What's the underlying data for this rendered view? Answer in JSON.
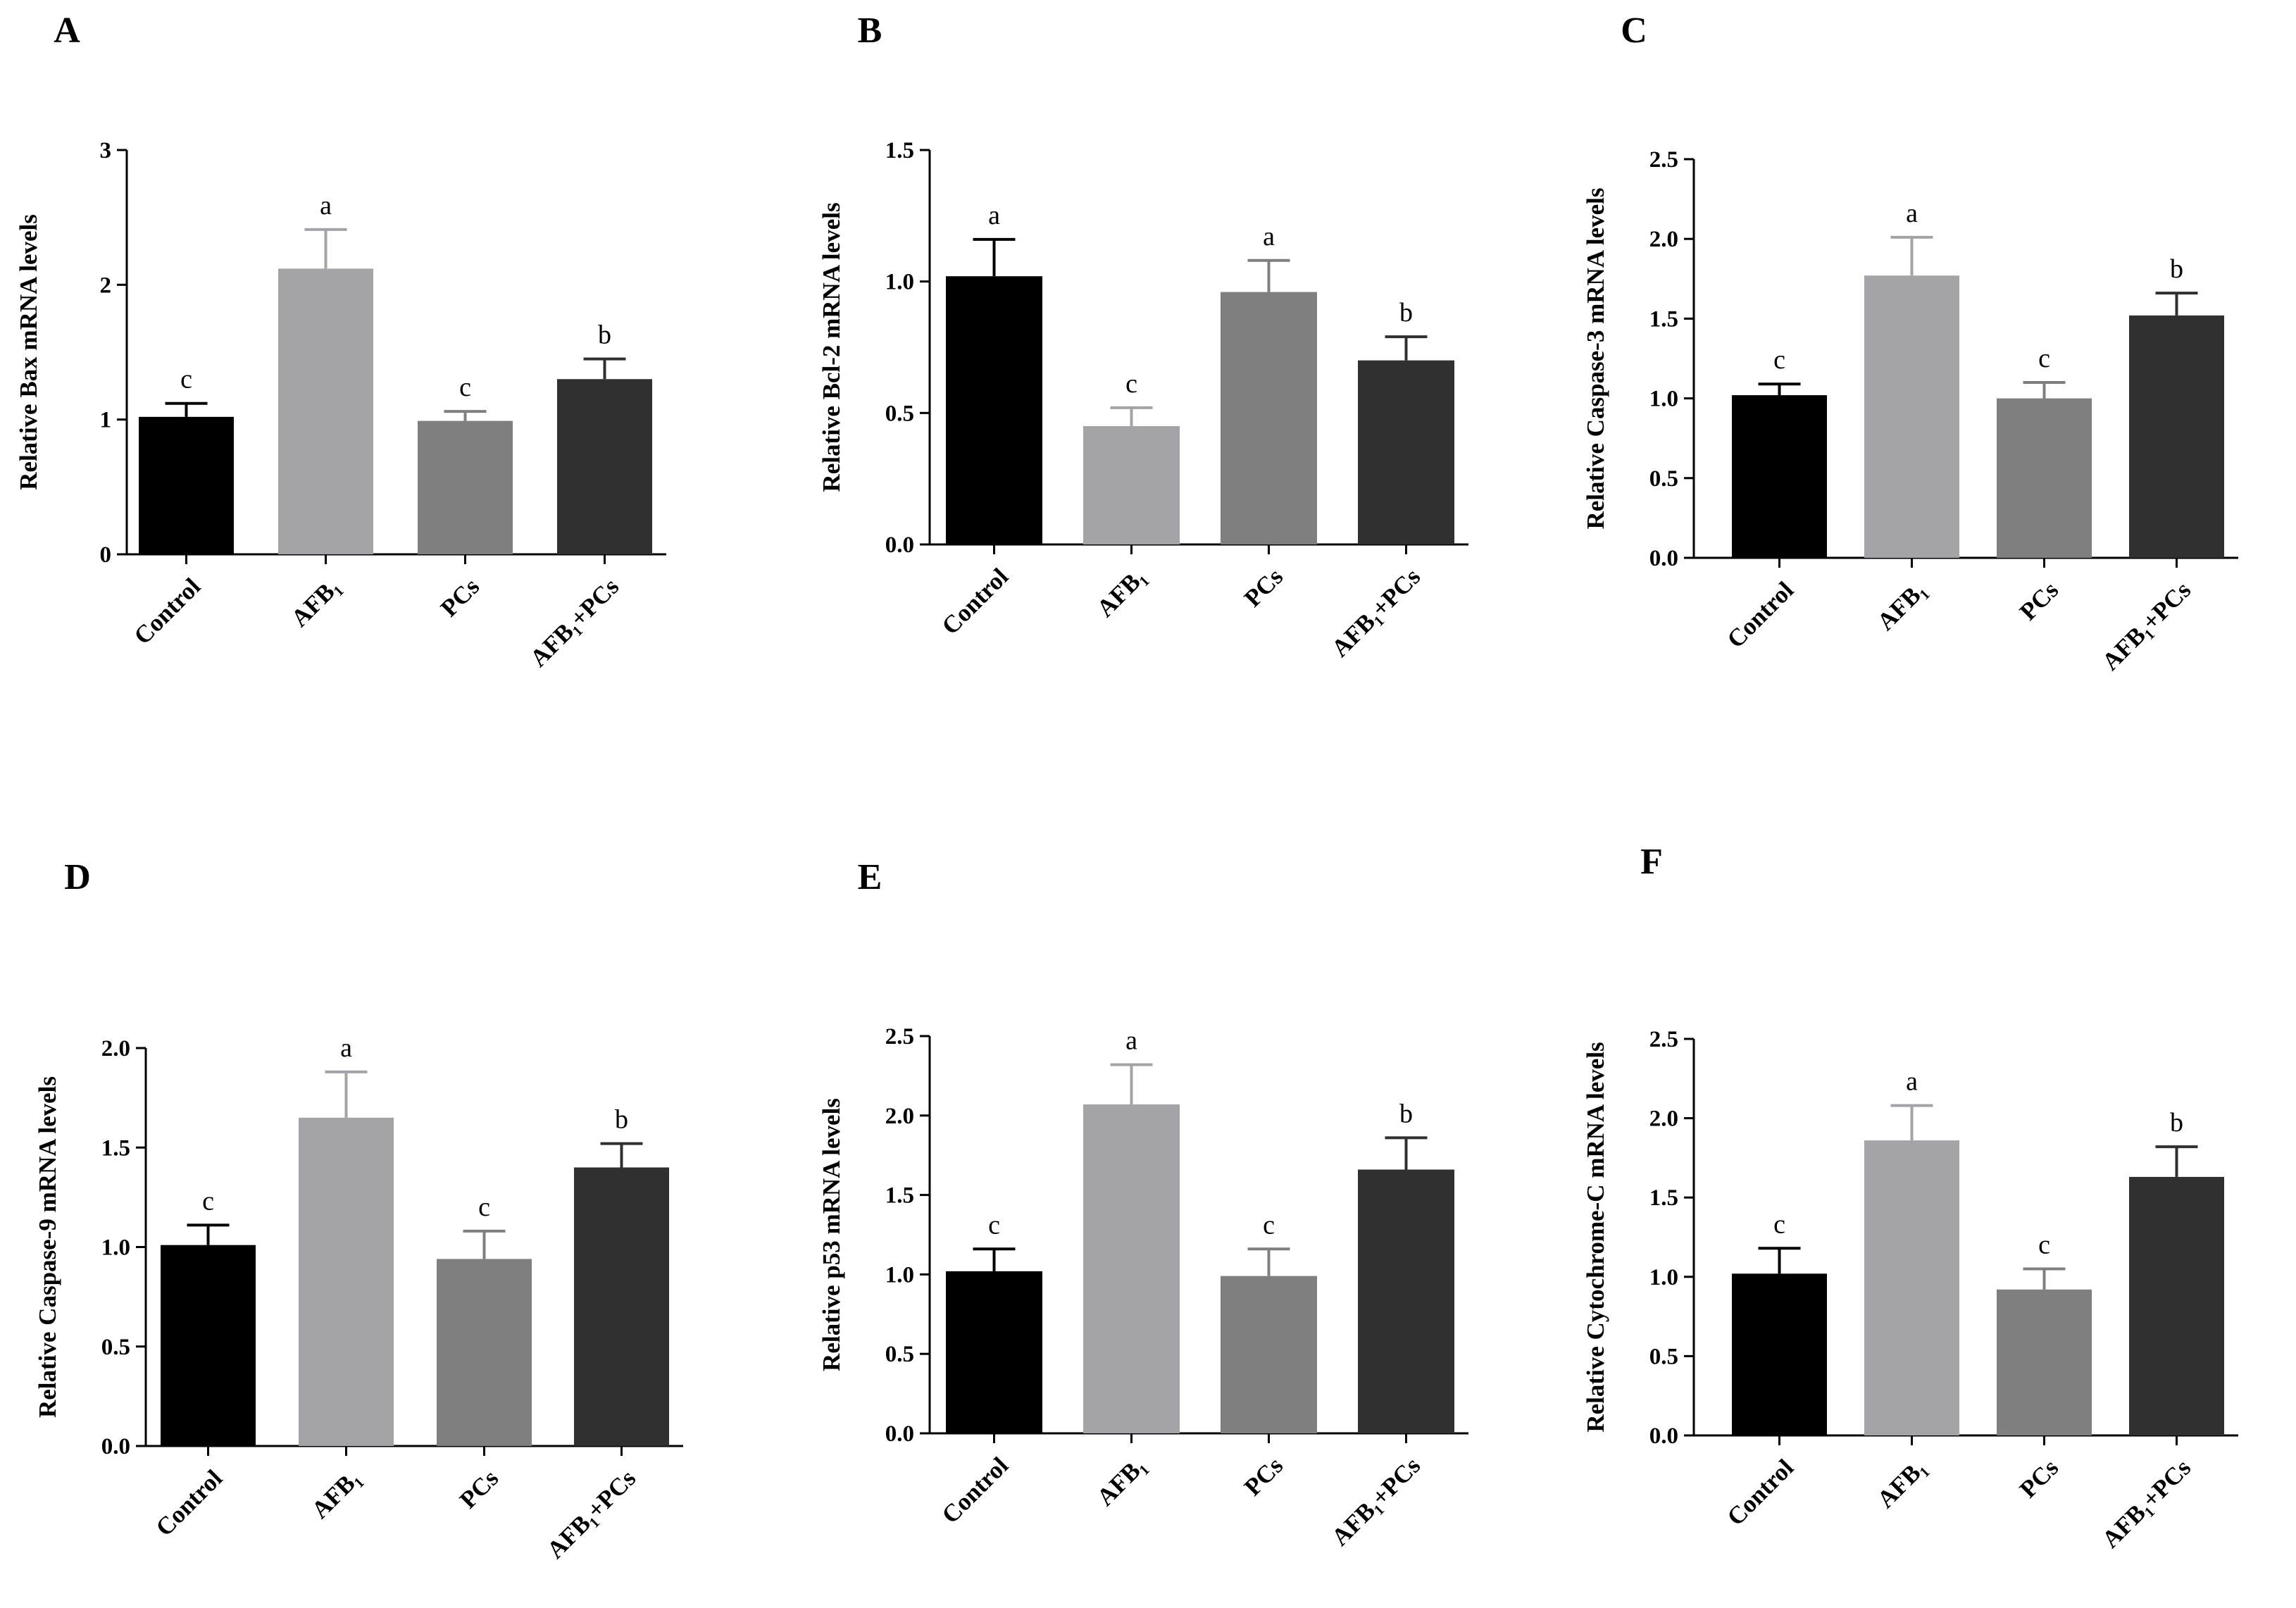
{
  "chart_data": [
    {
      "type": "bar",
      "panel": "A",
      "categories": [
        "Control",
        "AFB₁",
        "PCs",
        "AFB₁+PCs"
      ],
      "values": [
        1.02,
        2.12,
        0.99,
        1.3
      ],
      "errors": [
        0.1,
        0.29,
        0.07,
        0.15
      ],
      "labels": [
        "c",
        "a",
        "c",
        "b"
      ],
      "ylabel": "Relative Bax mRNA levels",
      "ylim": [
        0,
        3
      ],
      "yticks": [
        0,
        1,
        2,
        3
      ],
      "ytick_labels": [
        "0",
        "1",
        "2",
        "3"
      ]
    },
    {
      "type": "bar",
      "panel": "B",
      "categories": [
        "Control",
        "AFB₁",
        "PCs",
        "AFB₁+PCs"
      ],
      "values": [
        1.02,
        0.45,
        0.96,
        0.7
      ],
      "errors": [
        0.14,
        0.07,
        0.12,
        0.09
      ],
      "labels": [
        "a",
        "c",
        "a",
        "b"
      ],
      "ylabel": "Relative Bcl-2 mRNA levels",
      "ylim": [
        0,
        1.5
      ],
      "yticks": [
        0,
        0.5,
        1.0,
        1.5
      ],
      "ytick_labels": [
        "0.0",
        "0.5",
        "1.0",
        "1.5"
      ]
    },
    {
      "type": "bar",
      "panel": "C",
      "categories": [
        "Control",
        "AFB₁",
        "PCs",
        "AFB₁+PCs"
      ],
      "values": [
        1.02,
        1.77,
        1.0,
        1.52
      ],
      "errors": [
        0.07,
        0.24,
        0.1,
        0.14
      ],
      "labels": [
        "c",
        "a",
        "c",
        "b"
      ],
      "ylabel": "Relative Caspase-3 mRNA levels",
      "ylim": [
        0,
        2.5
      ],
      "yticks": [
        0,
        0.5,
        1.0,
        1.5,
        2.0,
        2.5
      ],
      "ytick_labels": [
        "0.0",
        "0.5",
        "1.0",
        "1.5",
        "2.0",
        "2.5"
      ]
    },
    {
      "type": "bar",
      "panel": "D",
      "categories": [
        "Control",
        "AFB₁",
        "PCs",
        "AFB₁+PCs"
      ],
      "values": [
        1.01,
        1.65,
        0.94,
        1.4
      ],
      "errors": [
        0.1,
        0.23,
        0.14,
        0.12
      ],
      "labels": [
        "c",
        "a",
        "c",
        "b"
      ],
      "ylabel": "Relative Caspase-9 mRNA levels",
      "ylim": [
        0,
        2.0
      ],
      "yticks": [
        0,
        0.5,
        1.0,
        1.5,
        2.0
      ],
      "ytick_labels": [
        "0.0",
        "0.5",
        "1.0",
        "1.5",
        "2.0"
      ]
    },
    {
      "type": "bar",
      "panel": "E",
      "categories": [
        "Control",
        "AFB₁",
        "PCs",
        "AFB₁+PCs"
      ],
      "values": [
        1.02,
        2.07,
        0.99,
        1.66
      ],
      "errors": [
        0.14,
        0.25,
        0.17,
        0.2
      ],
      "labels": [
        "c",
        "a",
        "c",
        "b"
      ],
      "ylabel": "Relative p53 mRNA levels",
      "ylim": [
        0,
        2.5
      ],
      "yticks": [
        0,
        0.5,
        1.0,
        1.5,
        2.0,
        2.5
      ],
      "ytick_labels": [
        "0.0",
        "0.5",
        "1.0",
        "1.5",
        "2.0",
        "2.5"
      ]
    },
    {
      "type": "bar",
      "panel": "F",
      "categories": [
        "Control",
        "AFB₁",
        "PCs",
        "AFB₁+PCs"
      ],
      "values": [
        1.02,
        1.86,
        0.92,
        1.63
      ],
      "errors": [
        0.16,
        0.22,
        0.13,
        0.19
      ],
      "labels": [
        "c",
        "a",
        "c",
        "b"
      ],
      "ylabel": "Relative Cytochrome-C mRNA levels",
      "ylim": [
        0,
        2.5
      ],
      "yticks": [
        0,
        0.5,
        1.0,
        1.5,
        2.0,
        2.5
      ],
      "ytick_labels": [
        "0.0",
        "0.5",
        "1.0",
        "1.5",
        "2.0",
        "2.5"
      ]
    }
  ],
  "colors": {
    "bars": [
      "#000000",
      "#a3a3a8",
      "#7f7f7f",
      "#303030"
    ],
    "errorbars": [
      "#000000",
      "#a3a3a8",
      "#7f7f7f",
      "#303030"
    ],
    "axis": "#000000"
  }
}
